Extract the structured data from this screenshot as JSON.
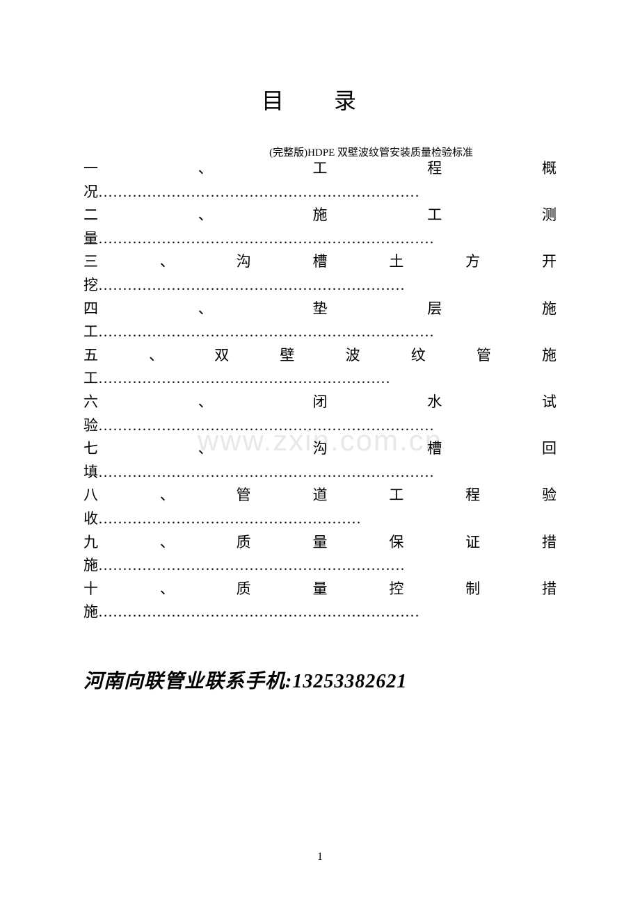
{
  "header_note": "(完整版)HDPE 双壁波纹管安装质量检验标准",
  "title": "目  录",
  "toc_entries": [
    {
      "num": "一",
      "chars": [
        "、",
        "工",
        "程",
        "概"
      ],
      "trail": "况",
      "dots_count": 44
    },
    {
      "num": "二",
      "chars": [
        "、",
        "施",
        "工",
        "测"
      ],
      "trail": "量",
      "dots_count": 46
    },
    {
      "num": "三",
      "chars": [
        "、",
        "沟",
        "槽",
        "土",
        "方",
        "开"
      ],
      "trail": "挖",
      "dots_count": 42
    },
    {
      "num": "四",
      "chars": [
        "、",
        "垫",
        "层",
        "施"
      ],
      "trail": "工",
      "dots_count": 46
    },
    {
      "num": "五",
      "chars": [
        "、",
        "双",
        "壁",
        "波",
        "纹",
        "管",
        "施"
      ],
      "trail": "工",
      "dots_count": 40
    },
    {
      "num": "六",
      "chars": [
        "、",
        "闭",
        "水",
        "试"
      ],
      "trail": "验",
      "dots_count": 46
    },
    {
      "num": "七",
      "chars": [
        "、",
        "沟",
        "槽",
        "回"
      ],
      "trail": "填",
      "dots_count": 46
    },
    {
      "num": "八",
      "chars": [
        "、",
        "管",
        "道",
        "工",
        "程",
        "验"
      ],
      "trail": "收",
      "dots_count": 36
    },
    {
      "num": "九",
      "chars": [
        "、",
        "质",
        "量",
        "保",
        "证",
        "措"
      ],
      "trail": "施",
      "dots_count": 42
    },
    {
      "num": "十",
      "chars": [
        "、",
        "质",
        "量",
        "控",
        "制",
        "措"
      ],
      "trail": "施",
      "dots_count": 44
    }
  ],
  "watermark": "www.zxin.com.cn",
  "contact": "河南向联管业联系手机:13253382621",
  "page_number": "1",
  "colors": {
    "text": "#000000",
    "watermark": "#e8e8e8",
    "background": "#ffffff"
  },
  "fonts": {
    "body": "SimSun",
    "contact": "KaiTi",
    "title_size": 32,
    "toc_size": 21,
    "contact_size": 28,
    "header_size": 15
  }
}
